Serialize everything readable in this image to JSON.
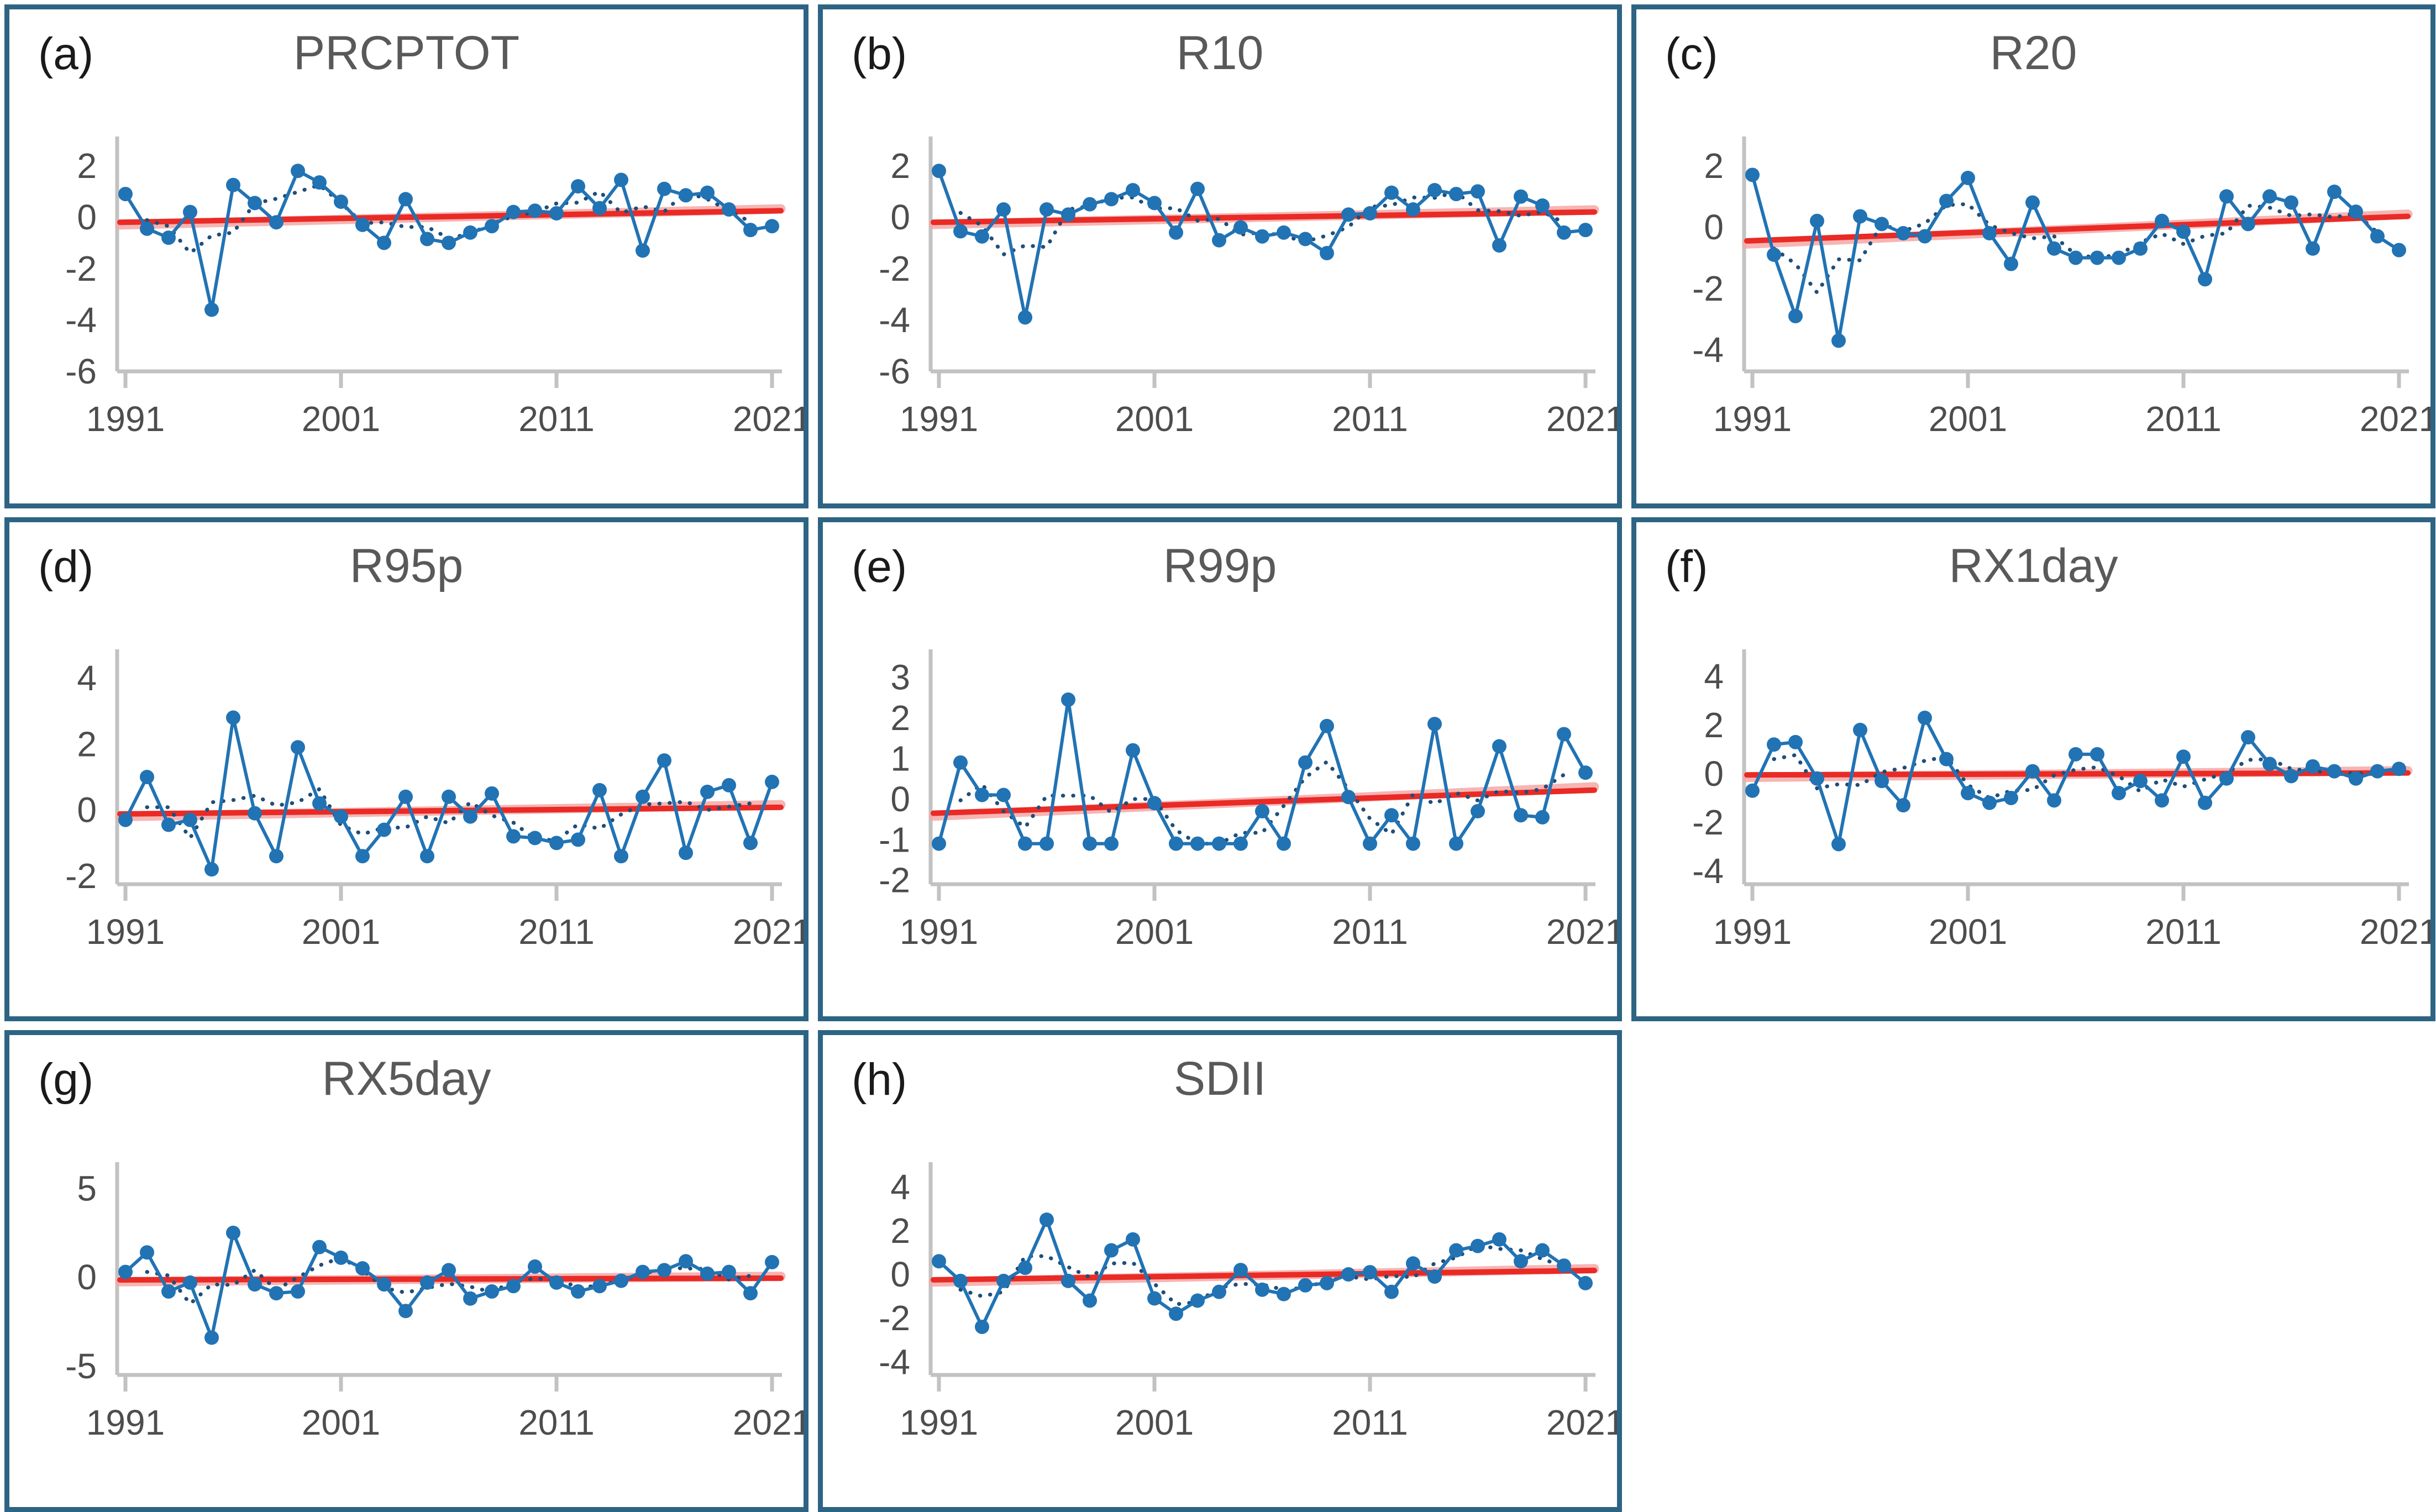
{
  "page": {
    "background": "#ffffff",
    "panel_border_color": "#2d6484",
    "description": "Standardized anomaly time series (1991-2021) of eight extreme precipitation indices with linear trend lines"
  },
  "colors": {
    "series_line": "#2173b4",
    "marker_fill": "#2173b4",
    "dotted_line": "#1f4e79",
    "trend_red": "#e92a25",
    "trend_pink": "#f5a9a6",
    "axis_gray": "#c2c2c2",
    "tick_label_gray": "#4d4d4d",
    "title_gray": "#595959"
  },
  "chart_data": [
    {
      "type": "line",
      "label": "(a)",
      "title": "PRCPTOT",
      "x_start": 1991,
      "x_ticks": [
        1991,
        2001,
        2011,
        2021
      ],
      "yticks": [
        2,
        0,
        -2,
        -4,
        -6
      ],
      "ylim": [
        -6,
        2.6
      ],
      "values": [
        0.9,
        -0.45,
        -0.8,
        0.2,
        -3.6,
        1.25,
        0.55,
        -0.2,
        1.8,
        1.35,
        0.6,
        -0.3,
        -1.0,
        0.7,
        -0.85,
        -1.0,
        -0.6,
        -0.35,
        0.2,
        0.25,
        0.15,
        1.2,
        0.35,
        1.45,
        -1.3,
        1.1,
        0.85,
        0.95,
        0.3,
        -0.5,
        -0.35
      ],
      "trend": {
        "start": -0.2,
        "end": 0.25
      },
      "trend2": {
        "start": -0.3,
        "end": 0.32
      }
    },
    {
      "type": "line",
      "label": "(b)",
      "title": "R10",
      "x_start": 1991,
      "x_ticks": [
        1991,
        2001,
        2011,
        2021
      ],
      "yticks": [
        2,
        0,
        -2,
        -4,
        -6
      ],
      "ylim": [
        -6,
        2.6
      ],
      "values": [
        1.8,
        -0.55,
        -0.75,
        0.3,
        -3.9,
        0.3,
        0.1,
        0.5,
        0.7,
        1.05,
        0.55,
        -0.6,
        1.1,
        -0.9,
        -0.4,
        -0.75,
        -0.6,
        -0.85,
        -1.4,
        0.1,
        0.15,
        0.95,
        0.3,
        1.05,
        0.9,
        1.0,
        -1.1,
        0.8,
        0.45,
        -0.6,
        -0.5
      ],
      "trend": {
        "start": -0.2,
        "end": 0.2
      },
      "trend2": {
        "start": -0.28,
        "end": 0.28
      }
    },
    {
      "type": "line",
      "label": "(c)",
      "title": "R20",
      "x_start": 1991,
      "x_ticks": [
        1991,
        2001,
        2011,
        2021
      ],
      "yticks": [
        2,
        0,
        -2,
        -4
      ],
      "ylim": [
        -4.7,
        2.5
      ],
      "values": [
        1.7,
        -0.9,
        -2.9,
        0.2,
        -3.7,
        0.35,
        0.1,
        -0.2,
        -0.3,
        0.85,
        1.6,
        -0.2,
        -1.2,
        0.8,
        -0.7,
        -1.0,
        -1.0,
        -1.0,
        -0.7,
        0.2,
        -0.15,
        -1.7,
        1.0,
        0.1,
        1.0,
        0.8,
        -0.7,
        1.15,
        0.5,
        -0.3,
        -0.75
      ],
      "trend": {
        "start": -0.45,
        "end": 0.35
      },
      "trend2": {
        "start": -0.55,
        "end": 0.42
      }
    },
    {
      "type": "line",
      "label": "(d)",
      "title": "R95p",
      "x_start": 1991,
      "x_ticks": [
        1991,
        2001,
        2011,
        2021
      ],
      "yticks": [
        4,
        2,
        0,
        -2
      ],
      "ylim": [
        -2.25,
        4.45
      ],
      "values": [
        -0.3,
        1.0,
        -0.45,
        -0.3,
        -1.8,
        2.8,
        -0.1,
        -1.4,
        1.9,
        0.2,
        -0.2,
        -1.4,
        -0.6,
        0.4,
        -1.4,
        0.4,
        -0.2,
        0.5,
        -0.8,
        -0.85,
        -1.0,
        -0.9,
        0.6,
        -1.4,
        0.4,
        1.5,
        -1.3,
        0.55,
        0.75,
        -1.0,
        0.85
      ],
      "trend": {
        "start": -0.12,
        "end": 0.08
      },
      "trend2": {
        "start": -0.2,
        "end": 0.16
      }
    },
    {
      "type": "line",
      "label": "(e)",
      "title": "R99p",
      "x_start": 1991,
      "x_ticks": [
        1991,
        2001,
        2011,
        2021
      ],
      "yticks": [
        3,
        2,
        1,
        0,
        -1,
        -2
      ],
      "ylim": [
        -2.1,
        3.35
      ],
      "values": [
        -1.1,
        0.9,
        0.1,
        0.1,
        -1.1,
        -1.1,
        2.45,
        -1.1,
        -1.1,
        1.2,
        -0.1,
        -1.1,
        -1.1,
        -1.1,
        -1.1,
        -0.3,
        -1.1,
        0.9,
        1.8,
        0.05,
        -1.1,
        -0.4,
        -1.1,
        1.85,
        -1.1,
        -0.3,
        1.3,
        -0.4,
        -0.45,
        1.6,
        0.65
      ],
      "trend": {
        "start": -0.35,
        "end": 0.22
      },
      "trend2": {
        "start": -0.42,
        "end": 0.3
      }
    },
    {
      "type": "line",
      "label": "(f)",
      "title": "RX1day",
      "x_start": 1991,
      "x_ticks": [
        1991,
        2001,
        2011,
        2021
      ],
      "yticks": [
        4,
        2,
        0,
        -2,
        -4
      ],
      "ylim": [
        -4.55,
        4.55
      ],
      "values": [
        -0.7,
        1.2,
        1.3,
        -0.2,
        -2.9,
        1.8,
        -0.3,
        -1.3,
        2.3,
        0.6,
        -0.8,
        -1.2,
        -1.0,
        0.1,
        -1.1,
        0.8,
        0.8,
        -0.8,
        -0.3,
        -1.1,
        0.7,
        -1.2,
        -0.2,
        1.5,
        0.4,
        -0.1,
        0.3,
        0.1,
        -0.2,
        0.1,
        0.2
      ],
      "trend": {
        "start": -0.05,
        "end": 0.03
      },
      "trend2": {
        "start": -0.15,
        "end": 0.12
      }
    },
    {
      "type": "line",
      "label": "(g)",
      "title": "RX5day",
      "x_start": 1991,
      "x_ticks": [
        1991,
        2001,
        2011,
        2021
      ],
      "yticks": [
        5,
        0,
        -5
      ],
      "ylim": [
        -5.5,
        5.7
      ],
      "values": [
        0.3,
        1.4,
        -0.8,
        -0.3,
        -3.4,
        2.5,
        -0.4,
        -0.9,
        -0.8,
        1.7,
        1.1,
        0.5,
        -0.4,
        -1.9,
        -0.3,
        0.4,
        -1.2,
        -0.8,
        -0.5,
        0.6,
        -0.3,
        -0.8,
        -0.5,
        -0.2,
        0.3,
        0.4,
        0.9,
        0.2,
        0.3,
        -0.9,
        0.85
      ],
      "trend": {
        "start": -0.15,
        "end": -0.05
      },
      "trend2": {
        "start": -0.25,
        "end": 0.05
      }
    },
    {
      "type": "line",
      "label": "(h)",
      "title": "SDII",
      "x_start": 1991,
      "x_ticks": [
        1991,
        2001,
        2011,
        2021
      ],
      "yticks": [
        4,
        2,
        0,
        -2,
        -4
      ],
      "ylim": [
        -4.6,
        4.5
      ],
      "values": [
        0.6,
        -0.3,
        -2.4,
        -0.3,
        0.3,
        2.5,
        -0.3,
        -1.2,
        1.1,
        1.6,
        -1.1,
        -1.8,
        -1.2,
        -0.8,
        0.2,
        -0.7,
        -0.9,
        -0.5,
        -0.4,
        0.0,
        0.1,
        -0.8,
        0.5,
        -0.1,
        1.1,
        1.3,
        1.6,
        0.6,
        1.1,
        0.4,
        -0.4
      ],
      "trend": {
        "start": -0.25,
        "end": 0.18
      },
      "trend2": {
        "start": -0.35,
        "end": 0.26
      }
    }
  ]
}
